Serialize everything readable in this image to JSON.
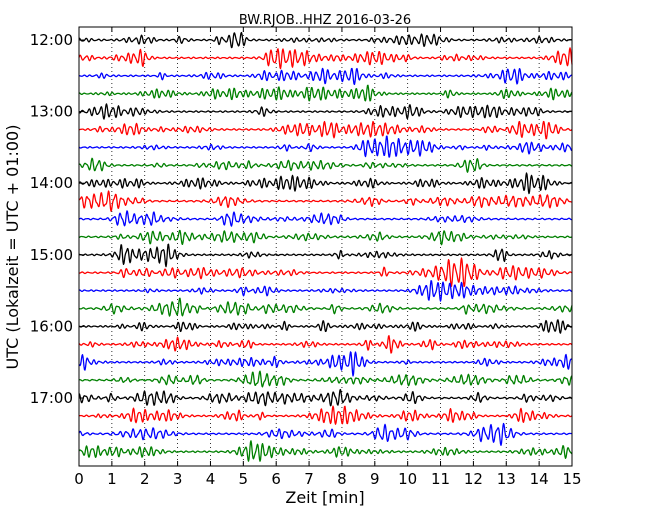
{
  "chart_data": {
    "type": "line",
    "title": "BW.RJOB..HHZ 2016-03-26",
    "xlabel": "Zeit  [min]",
    "ylabel": "UTC (Lokalzeit = UTC + 01:00)",
    "xlim": [
      0,
      15
    ],
    "x_ticks": [
      "0",
      "1",
      "2",
      "3",
      "4",
      "5",
      "6",
      "7",
      "8",
      "9",
      "10",
      "11",
      "12",
      "13",
      "14",
      "15"
    ],
    "y_ticks": [
      "12:00",
      "13:00",
      "14:00",
      "15:00",
      "16:00",
      "17:00"
    ],
    "grid": "vertical dotted lines at each minute",
    "trace_colors": [
      "#000000",
      "#ff0000",
      "#0000ff",
      "#008000"
    ],
    "trace_count": 24,
    "trace_length_minutes": 15
  }
}
